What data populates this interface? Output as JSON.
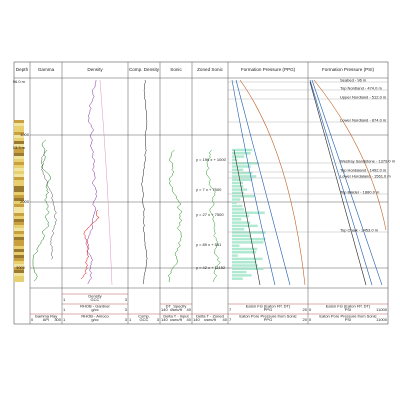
{
  "tracks": [
    {
      "title": "Depth"
    },
    {
      "title": "Gamma"
    },
    {
      "title": "Density"
    },
    {
      "title": "Comp. Density"
    },
    {
      "title": "Sonic"
    },
    {
      "title": "Zoned Sonic"
    },
    {
      "title": "Formation Pressure (PPG)"
    },
    {
      "title": "Formation Pressure (PSI)"
    }
  ],
  "depth_labels": [
    "96.0 m",
    "1000",
    "13.3 m",
    "2000",
    "3000"
  ],
  "sonic_annotations": [
    "y = 196 x + 1000",
    "y = 7 x + 7500",
    "y = 27 x + 7500",
    "y = 89 x + 551",
    "y = 42 x + 11152"
  ],
  "formation_tops": [
    "Seabed - 96 m",
    "Top Nordland - 474.0 m",
    "Upper Nordland - 512.0 m",
    "Lower Nordland - 874.0 m",
    "Westray Sandstone - 1379.0 m",
    "Top Hordaland - 1492.0 m",
    "Lower Hordaland - 1561.0 m",
    "Top Balder - 1880.0 m",
    "Top Chalk - 2453.0 m"
  ],
  "footer": [
    [
      {
        "name": "Gamma Ray",
        "unit": "API",
        "min": "0",
        "max": "300"
      }
    ],
    [
      {
        "name": "RHOB - Amoco",
        "unit": "g/cc",
        "min": "1",
        "max": "3"
      },
      {
        "name": "RHOB - Gardner",
        "unit": "g/cc",
        "min": "1",
        "max": "3"
      },
      {
        "name": "Density",
        "unit": "GCC",
        "min": "1",
        "max": "3"
      }
    ],
    [
      {
        "name": "Comp.",
        "unit": "GCC",
        "min": "1",
        "max": "3"
      }
    ],
    [
      {
        "name": "Delta T - Input",
        "unit": "usec/ft",
        "min": "140",
        "max": "40"
      },
      {
        "name": "DT_Specify",
        "unit": "usec/ft",
        "min": "140",
        "max": "40"
      }
    ],
    [
      {
        "name": "Delta T - Zoned",
        "unit": "usec/ft",
        "min": "140",
        "max": "40"
      }
    ],
    [
      {
        "name": "Eaton Pore Pressure from Sonic",
        "unit": "PPG",
        "min": "7",
        "max": "20"
      },
      {
        "name": "Eaton FG (Eaton FP, DT)",
        "unit": "PPG",
        "min": "7",
        "max": "20"
      }
    ],
    [
      {
        "name": "Eaton Pore Pressure from Sonic",
        "unit": "PSI",
        "min": "0",
        "max": "11000"
      },
      {
        "name": "Eaton FG (Eaton FP, DT)",
        "unit": "PSI",
        "min": "0",
        "max": "11000"
      }
    ]
  ]
}
